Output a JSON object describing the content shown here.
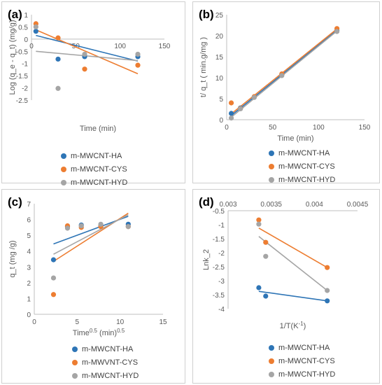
{
  "colors": {
    "s0": "#2E75B6",
    "s1": "#ED7D31",
    "s2": "#A5A5A5"
  },
  "chart_data": [
    {
      "type": "scatter",
      "panel_label": "(a)",
      "title": "",
      "xlabel": "Time (min)",
      "ylabel": "Log (q_e - q_t)  (mg/g)",
      "xlim": [
        0,
        150
      ],
      "ylim": [
        -2.5,
        1
      ],
      "xticks": [
        "0",
        "50",
        "100",
        "150"
      ],
      "yticks": [
        "1",
        "0.5",
        "0",
        "-0.5",
        "-1",
        "-1.5",
        "-2",
        "-2.5"
      ],
      "legend_position": "bottom",
      "series": [
        {
          "name": "m-MWCNT-HA",
          "x": [
            5,
            30,
            60,
            120
          ],
          "y": [
            0.32,
            -0.82,
            -0.72,
            -0.72
          ],
          "trend": [
            [
              5,
              0.15
            ],
            [
              120,
              -0.9
            ]
          ]
        },
        {
          "name": "m-MWCNT-CYS",
          "x": [
            5,
            30,
            60,
            120
          ],
          "y": [
            0.63,
            0.05,
            -1.23,
            -1.07
          ],
          "trend": [
            [
              5,
              0.38
            ],
            [
              120,
              -1.42
            ]
          ]
        },
        {
          "name": "m-MWCNT-HYD",
          "x": [
            5,
            30,
            60,
            120
          ],
          "y": [
            0.5,
            -2.02,
            -0.62,
            -0.62
          ],
          "trend": [
            [
              5,
              -0.5
            ],
            [
              120,
              -0.88
            ]
          ]
        }
      ]
    },
    {
      "type": "scatter",
      "panel_label": "(b)",
      "title": "",
      "xlabel": "Time (min)",
      "ylabel": "t/ q_t ( min.g/mg )",
      "xlim": [
        0,
        150
      ],
      "ylim": [
        0,
        25
      ],
      "xticks": [
        "0",
        "50",
        "100",
        "150"
      ],
      "yticks": [
        "25",
        "20",
        "15",
        "10",
        "5",
        "0"
      ],
      "legend_position": "bottom",
      "series": [
        {
          "name": "m-MWCNT-HA",
          "x": [
            5,
            15,
            30,
            60,
            120
          ],
          "y": [
            1.5,
            2.8,
            5.4,
            10.7,
            21.2
          ],
          "trend": [
            [
              5,
              1.0
            ],
            [
              120,
              21.3
            ]
          ]
        },
        {
          "name": "m-MWCNT-CYS",
          "x": [
            5,
            15,
            30,
            60,
            120
          ],
          "y": [
            4.0,
            2.7,
            5.5,
            10.9,
            21.7
          ],
          "trend": [
            [
              5,
              1.4
            ],
            [
              120,
              21.6
            ]
          ]
        },
        {
          "name": "m-MWCNT-HYD",
          "x": [
            5,
            15,
            30,
            60,
            120
          ],
          "y": [
            0.4,
            2.6,
            5.3,
            10.5,
            21.0
          ],
          "trend": [
            [
              5,
              0.6
            ],
            [
              120,
              21.1
            ]
          ]
        }
      ]
    },
    {
      "type": "scatter",
      "panel_label": "(c)",
      "title": "",
      "xlabel": "Time",
      "xlabel_sup1": "0.5",
      "xlabel_mid": " (min)",
      "xlabel_sup2": "0.5",
      "ylabel": "q_t  (mg /g)",
      "xlim": [
        0,
        15
      ],
      "ylim": [
        0,
        7
      ],
      "xticks": [
        "0",
        "5",
        "10",
        "15"
      ],
      "yticks": [
        "7",
        "6",
        "5",
        "4",
        "3",
        "2",
        "1",
        "0"
      ],
      "legend_position": "bottom",
      "series": [
        {
          "name": "m-MWCNT-HA",
          "x": [
            2.24,
            3.87,
            5.48,
            7.75,
            10.95
          ],
          "y": [
            3.45,
            5.55,
            5.65,
            5.6,
            5.7
          ],
          "trend": [
            [
              2.24,
              4.45
            ],
            [
              10.95,
              6.2
            ]
          ]
        },
        {
          "name": "m-MWVNT-CYS",
          "x": [
            2.24,
            3.87,
            5.48,
            7.75,
            10.95
          ],
          "y": [
            1.25,
            5.6,
            5.5,
            5.55,
            5.55
          ],
          "trend": [
            [
              2.24,
              3.35
            ],
            [
              10.95,
              6.4
            ]
          ]
        },
        {
          "name": "m-MWCNT-HYD",
          "x": [
            2.24,
            3.87,
            5.48,
            7.75,
            10.95
          ],
          "y": [
            2.3,
            5.45,
            5.6,
            5.7,
            5.55
          ],
          "trend": [
            [
              2.24,
              3.8
            ],
            [
              10.95,
              6.3
            ]
          ]
        }
      ]
    },
    {
      "type": "scatter",
      "panel_label": "(d)",
      "title": "",
      "xlabel": "1/T(K",
      "xlabel_sup": "-1",
      "xlabel_end": ")",
      "ylabel": "Lnk_2",
      "xlim": [
        0.003,
        0.0045
      ],
      "ylim": [
        -4,
        -0.5
      ],
      "xticks": [
        "0.003",
        "0.0035",
        "0.004",
        "0.0045"
      ],
      "yticks": [
        "-0.5",
        "-1",
        "-1.5",
        "-2",
        "-2.5",
        "-3",
        "-3.5",
        "-4"
      ],
      "legend_position": "bottom",
      "series": [
        {
          "name": "m-MWCNT-HA",
          "x": [
            0.003356,
            0.003436,
            0.004149
          ],
          "y": [
            -3.25,
            -3.55,
            -3.72
          ],
          "trend": [
            [
              0.003356,
              -3.38
            ],
            [
              0.004149,
              -3.72
            ]
          ]
        },
        {
          "name": "m-MWCNT-CYS",
          "x": [
            0.003356,
            0.003436,
            0.004149
          ],
          "y": [
            -0.83,
            -1.63,
            -2.53
          ],
          "trend": [
            [
              0.003356,
              -1.12
            ],
            [
              0.004149,
              -2.53
            ]
          ]
        },
        {
          "name": "m-MWCNT-HYD",
          "x": [
            0.003356,
            0.003436,
            0.004149
          ],
          "y": [
            -0.98,
            -2.13,
            -3.35
          ],
          "trend": [
            [
              0.003356,
              -1.42
            ],
            [
              0.004149,
              -3.35
            ]
          ]
        }
      ]
    }
  ]
}
